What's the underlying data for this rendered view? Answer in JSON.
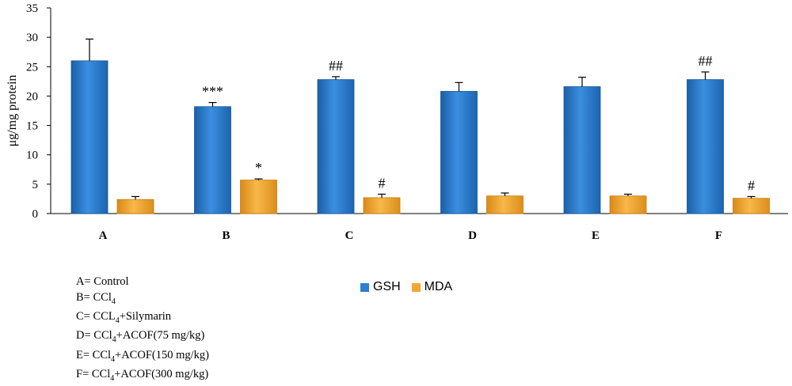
{
  "chart_data": {
    "type": "bar",
    "ylabel": "μg/mg protein",
    "ylim": [
      0,
      35
    ],
    "yticks": [
      0,
      5,
      10,
      15,
      20,
      25,
      30,
      35
    ],
    "categories": [
      "A",
      "B",
      "C",
      "D",
      "E",
      "F"
    ],
    "series": [
      {
        "name": "GSH",
        "color": "#2f7fd1",
        "values": [
          26,
          18.2,
          22.8,
          20.8,
          21.6,
          22.8
        ],
        "errors": [
          3.7,
          0.7,
          0.5,
          1.5,
          1.6,
          1.3
        ],
        "annotations": [
          "",
          "***",
          "##",
          "",
          "",
          "##"
        ]
      },
      {
        "name": "MDA",
        "color": "#f2a733",
        "values": [
          2.4,
          5.7,
          2.7,
          3.0,
          3.0,
          2.6
        ],
        "errors": [
          0.5,
          0.2,
          0.6,
          0.5,
          0.3,
          0.3
        ],
        "annotations": [
          "",
          "*",
          "#",
          "",
          "",
          "#"
        ]
      }
    ]
  },
  "key": [
    {
      "pre": "A= Control",
      "sub": "",
      "post": ""
    },
    {
      "pre": "B= CCl",
      "sub": "4",
      "post": ""
    },
    {
      "pre": "C= CCL",
      "sub": "4",
      "post": "+Silymarin"
    },
    {
      "pre": "D= CCl",
      "sub": "4",
      "post": "+ACOF(75 mg/kg)"
    },
    {
      "pre": "E= CCl",
      "sub": "4",
      "post": "+ACOF(150 mg/kg)"
    },
    {
      "pre": "F=  CCl",
      "sub": "4",
      "post": "+ACOF(300 mg/kg)"
    }
  ]
}
